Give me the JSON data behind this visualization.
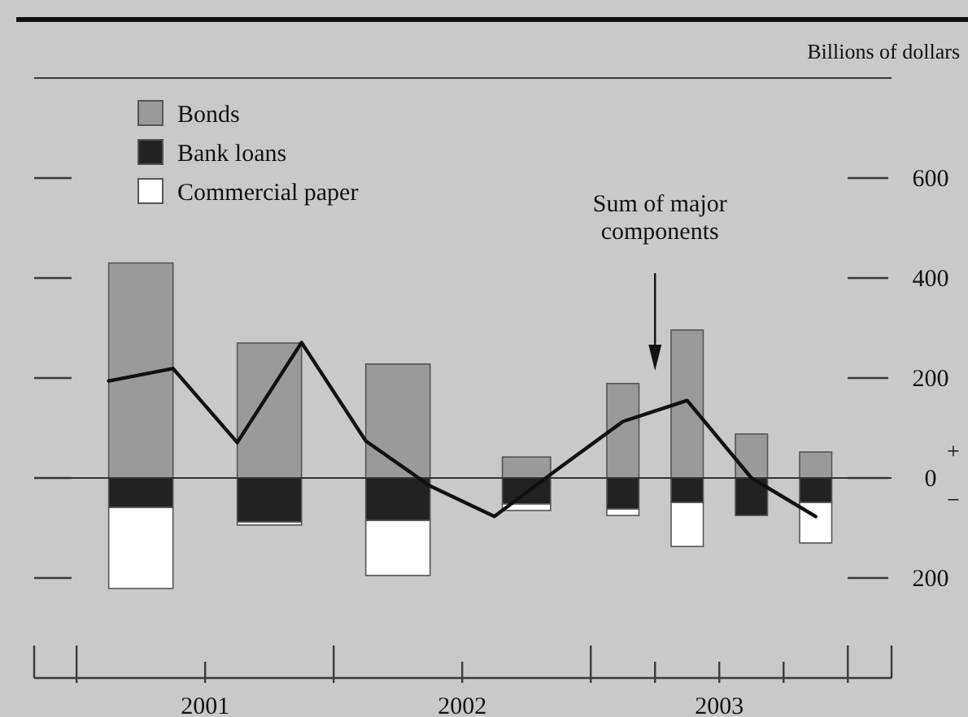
{
  "chart_data": {
    "type": "bar",
    "stacked": true,
    "ylabel": "Billions of dollars",
    "x": [
      2001.25,
      2001.75,
      2002.25,
      2002.75,
      2003.125,
      2003.375,
      2003.625,
      2003.875
    ],
    "series": [
      {
        "name": "Bonds",
        "color": "#9a9a9a",
        "values": [
          430,
          270,
          228,
          42,
          189,
          296,
          88,
          52
        ]
      },
      {
        "name": "Bank loans",
        "color": "#222222",
        "values": [
          -59,
          -88,
          -85,
          -52,
          -62,
          -49,
          -75,
          -49
        ]
      },
      {
        "name": "Commercial paper",
        "color": "#ffffff",
        "values": [
          -162,
          -6,
          -110,
          -13,
          -13,
          -88,
          null,
          -81
        ]
      },
      {
        "name": "Sum of major components",
        "type": "line",
        "color": "#111111",
        "x": [
          2001.125,
          2001.375,
          2001.625,
          2001.875,
          2002.125,
          2002.375,
          2002.625,
          2002.875,
          2003.125,
          2003.375,
          2003.625,
          2003.875
        ],
        "values": [
          194,
          219,
          71,
          271,
          74,
          -16,
          -77,
          19,
          113,
          155,
          0,
          -77
        ]
      }
    ],
    "xlim": [
      2000.835,
      2004.17
    ],
    "xticks": [
      {
        "value": 2001,
        "label": null
      },
      {
        "value": 2001.5,
        "label": "2001"
      },
      {
        "value": 2002,
        "label": null
      },
      {
        "value": 2002.5,
        "label": "2002"
      },
      {
        "value": 2003,
        "label": null
      },
      {
        "value": 2003.25,
        "label": null
      },
      {
        "value": 2003.5,
        "label": "2003"
      },
      {
        "value": 2003.75,
        "label": null
      },
      {
        "value": 2004,
        "label": null
      }
    ],
    "ylim": [
      -400,
      800
    ],
    "yticks": [
      {
        "value": -200,
        "label": "200"
      },
      {
        "value": 0,
        "label": "0"
      },
      200,
      400,
      600
    ],
    "ref_lines": [
      {
        "axis": "y",
        "value": 0,
        "color": "#333333"
      }
    ],
    "annotations": [
      "+",
      "−"
    ],
    "legend": "top left",
    "grid": false
  }
}
